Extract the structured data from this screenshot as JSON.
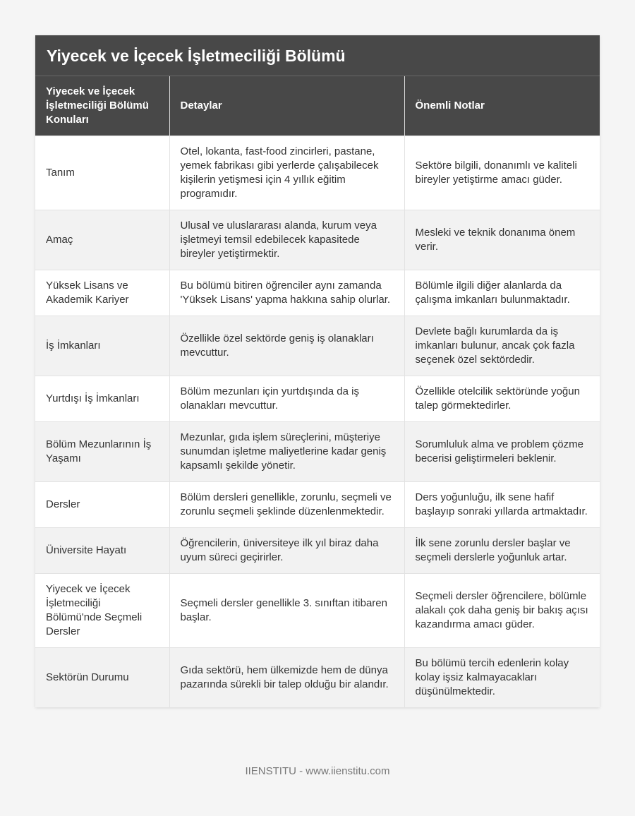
{
  "title": "Yiyecek ve İçecek İşletmeciliği Bölümü",
  "headers": [
    "Yiyecek ve İçecek İşletmeciliği Bölümü Konuları",
    "Detaylar",
    "Önemli Notlar"
  ],
  "rows": [
    [
      "Tanım",
      "Otel, lokanta, fast-food zincirleri, pastane, yemek fabrikası gibi yerlerde çalışabilecek kişilerin yetişmesi için 4 yıllık eğitim programıdır.",
      "Sektöre bilgili, donanımlı ve kaliteli bireyler yetiştirme amacı güder."
    ],
    [
      "Amaç",
      "Ulusal ve uluslararası alanda, kurum veya işletmeyi temsil edebilecek kapasitede bireyler yetiştirmektir.",
      "Mesleki ve teknik donanıma önem verir."
    ],
    [
      "Yüksek Lisans ve Akademik Kariyer",
      "Bu bölümü bitiren öğrenciler aynı zamanda 'Yüksek Lisans' yapma hakkına sahip olurlar.",
      "Bölümle ilgili diğer alanlarda da çalışma imkanları bulunmaktadır."
    ],
    [
      "İş İmkanları",
      "Özellikle özel sektörde geniş iş olanakları mevcuttur.",
      "Devlete bağlı kurumlarda da iş imkanları bulunur, ancak çok fazla seçenek özel sektördedir."
    ],
    [
      "Yurtdışı İş İmkanları",
      "Bölüm mezunları için yurtdışında da iş olanakları mevcuttur.",
      "Özellikle otelcilik sektöründe yoğun talep görmektedirler."
    ],
    [
      "Bölüm Mezunlarının İş Yaşamı",
      "Mezunlar, gıda işlem süreçlerini, müşteriye sunumdan işletme maliyetlerine kadar geniş kapsamlı şekilde yönetir.",
      "Sorumluluk alma ve problem çözme becerisi geliştirmeleri beklenir."
    ],
    [
      "Dersler",
      "Bölüm dersleri genellikle, zorunlu, seçmeli ve zorunlu seçmeli şeklinde düzenlenmektedir.",
      "Ders yoğunluğu, ilk sene hafif başlayıp sonraki yıllarda artmaktadır."
    ],
    [
      "Üniversite Hayatı",
      "Öğrencilerin, üniversiteye ilk yıl biraz daha uyum süreci geçirirler.",
      "İlk sene zorunlu dersler başlar ve seçmeli derslerle yoğunluk artar."
    ],
    [
      "Yiyecek ve İçecek İşletmeciliği Bölümü'nde Seçmeli Dersler",
      "Seçmeli dersler genellikle 3. sınıftan itibaren başlar.",
      "Seçmeli dersler öğrencilere, bölümle alakalı çok daha geniş bir bakış açısı kazandırma amacı güder."
    ],
    [
      "Sektörün Durumu",
      "Gıda sektörü, hem ülkemizde hem de dünya pazarında sürekli bir talep olduğu bir alandır.",
      "Bu bölümü tercih edenlerin kolay kolay işsiz kalmayacakları düşünülmektedir."
    ]
  ],
  "footer": "IIENSTITU - www.iienstitu.com"
}
